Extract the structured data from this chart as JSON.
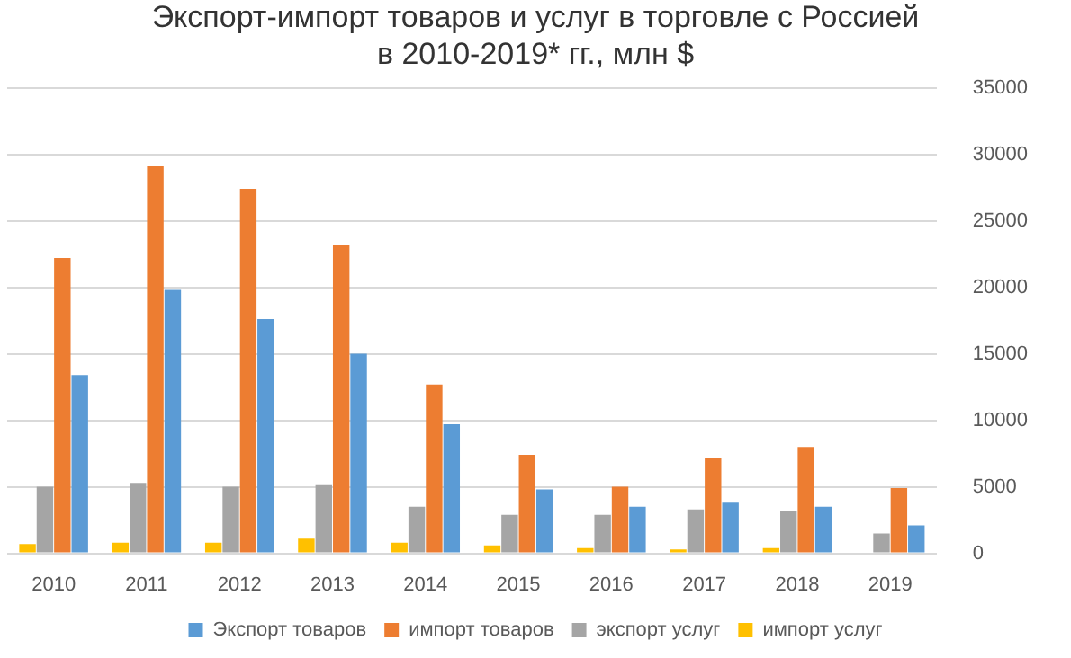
{
  "chart_data": {
    "type": "bar",
    "title": [
      "Экспорт-импорт товаров и услуг в торговле с Россией",
      "в 2010-2019* гг., млн $"
    ],
    "categories": [
      "2010",
      "2011",
      "2012",
      "2013",
      "2014",
      "2015",
      "2016",
      "2017",
      "2018",
      "2019"
    ],
    "series": [
      {
        "name": "Экспорт товаров",
        "color": "#5b9bd5",
        "values": [
          13400,
          19800,
          17600,
          15000,
          9700,
          4800,
          3500,
          3800,
          3500,
          2100
        ]
      },
      {
        "name": "импорт товаров",
        "color": "#ed7d31",
        "values": [
          22200,
          29100,
          27400,
          23200,
          12700,
          7400,
          5000,
          7200,
          8000,
          4900
        ]
      },
      {
        "name": "экспорт услуг",
        "color": "#a5a5a5",
        "values": [
          5000,
          5300,
          5000,
          5200,
          3500,
          2900,
          2900,
          3300,
          3200,
          1500
        ]
      },
      {
        "name": "импорт услуг",
        "color": "#ffc000",
        "values": [
          700,
          800,
          800,
          1100,
          800,
          600,
          400,
          300,
          400,
          null
        ]
      }
    ],
    "ylim": [
      0,
      35000
    ],
    "yticks": [
      0,
      5000,
      10000,
      15000,
      20000,
      25000,
      30000,
      35000
    ],
    "grid": "y",
    "legend": "bottom"
  }
}
